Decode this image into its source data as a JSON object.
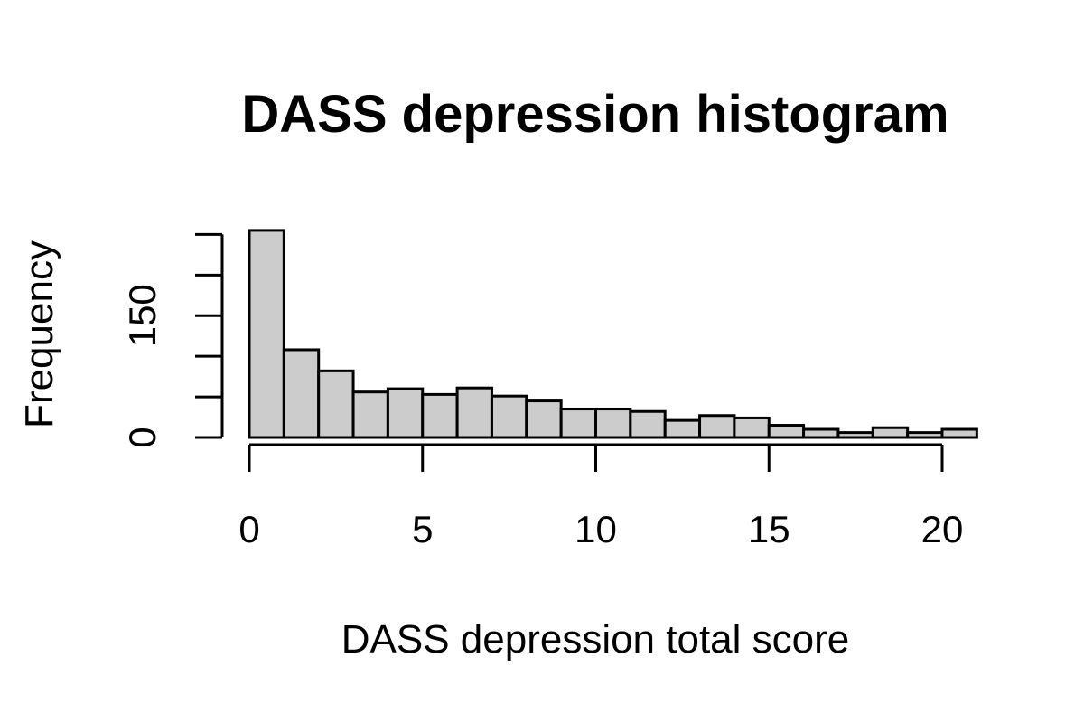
{
  "chart_data": {
    "type": "bar",
    "title": "DASS depression histogram",
    "xlabel": "DASS depression total score",
    "ylabel": "Frequency",
    "bins": [
      {
        "x0": 0,
        "x1": 1,
        "count": 255
      },
      {
        "x0": 1,
        "x1": 2,
        "count": 108
      },
      {
        "x0": 2,
        "x1": 3,
        "count": 82
      },
      {
        "x0": 3,
        "x1": 4,
        "count": 56
      },
      {
        "x0": 4,
        "x1": 5,
        "count": 60
      },
      {
        "x0": 5,
        "x1": 6,
        "count": 53
      },
      {
        "x0": 6,
        "x1": 7,
        "count": 61
      },
      {
        "x0": 7,
        "x1": 8,
        "count": 51
      },
      {
        "x0": 8,
        "x1": 9,
        "count": 45
      },
      {
        "x0": 9,
        "x1": 10,
        "count": 35
      },
      {
        "x0": 10,
        "x1": 11,
        "count": 35
      },
      {
        "x0": 11,
        "x1": 12,
        "count": 32
      },
      {
        "x0": 12,
        "x1": 13,
        "count": 21
      },
      {
        "x0": 13,
        "x1": 14,
        "count": 27
      },
      {
        "x0": 14,
        "x1": 15,
        "count": 24
      },
      {
        "x0": 15,
        "x1": 16,
        "count": 15
      },
      {
        "x0": 16,
        "x1": 17,
        "count": 10
      },
      {
        "x0": 17,
        "x1": 18,
        "count": 6
      },
      {
        "x0": 18,
        "x1": 19,
        "count": 12
      },
      {
        "x0": 19,
        "x1": 20,
        "count": 6
      },
      {
        "x0": 20,
        "x1": 21,
        "count": 10
      }
    ],
    "x_ticks": [
      0,
      5,
      10,
      15,
      20
    ],
    "x_tick_labels": [
      "0",
      "5",
      "10",
      "15",
      "20"
    ],
    "y_ticks": [
      0,
      50,
      100,
      150,
      200,
      250
    ],
    "y_tick_labels": [
      "0",
      "",
      "",
      "150",
      "",
      ""
    ],
    "xlim": [
      0,
      20.8
    ],
    "ylim": [
      0,
      255
    ],
    "grid": false,
    "legend": "none",
    "colors": {
      "bar_fill": "#cccccc",
      "bar_stroke": "#000000",
      "axis": "#000000"
    }
  }
}
